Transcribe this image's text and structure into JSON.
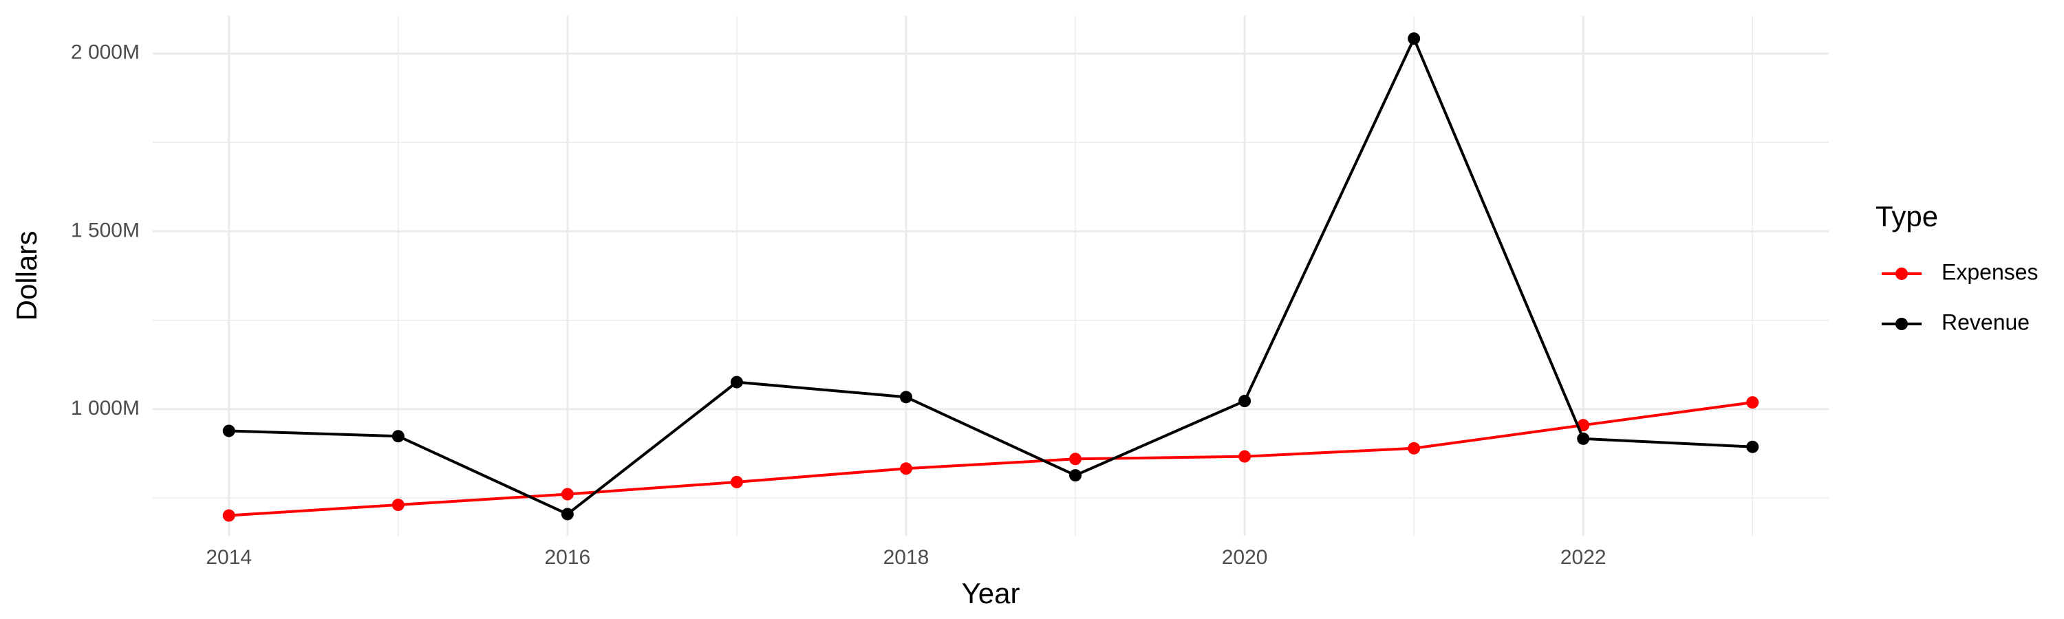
{
  "chart_data": {
    "type": "line",
    "x_label": "Year",
    "y_label": "Dollars",
    "x": [
      2014,
      2015,
      2016,
      2017,
      2018,
      2019,
      2020,
      2021,
      2022,
      2023
    ],
    "series": [
      {
        "name": "Expenses",
        "color": "#ff0000",
        "values": [
          701,
          731,
          761,
          795,
          833,
          860,
          867,
          890,
          955,
          1019
        ]
      },
      {
        "name": "Revenue",
        "color": "#000000",
        "values": [
          939,
          924,
          705,
          1076,
          1034,
          814,
          1023,
          2042,
          917,
          894
        ]
      }
    ],
    "xlim": [
      2013.55,
      2023.45
    ],
    "xticks": [
      2014,
      2016,
      2018,
      2020,
      2022
    ],
    "minor_xticks": [
      2015,
      2017,
      2019,
      2021,
      2023
    ],
    "ylim": [
      644,
      2106
    ],
    "yticks": [
      {
        "value": 1000,
        "label": "1 000M"
      },
      {
        "value": 1500,
        "label": "1 500M"
      },
      {
        "value": 2000,
        "label": "2 000M"
      }
    ],
    "minor_yticks": [
      750,
      1250,
      1750
    ],
    "grid": true,
    "legend_title": "Type",
    "legend_position": "right"
  }
}
